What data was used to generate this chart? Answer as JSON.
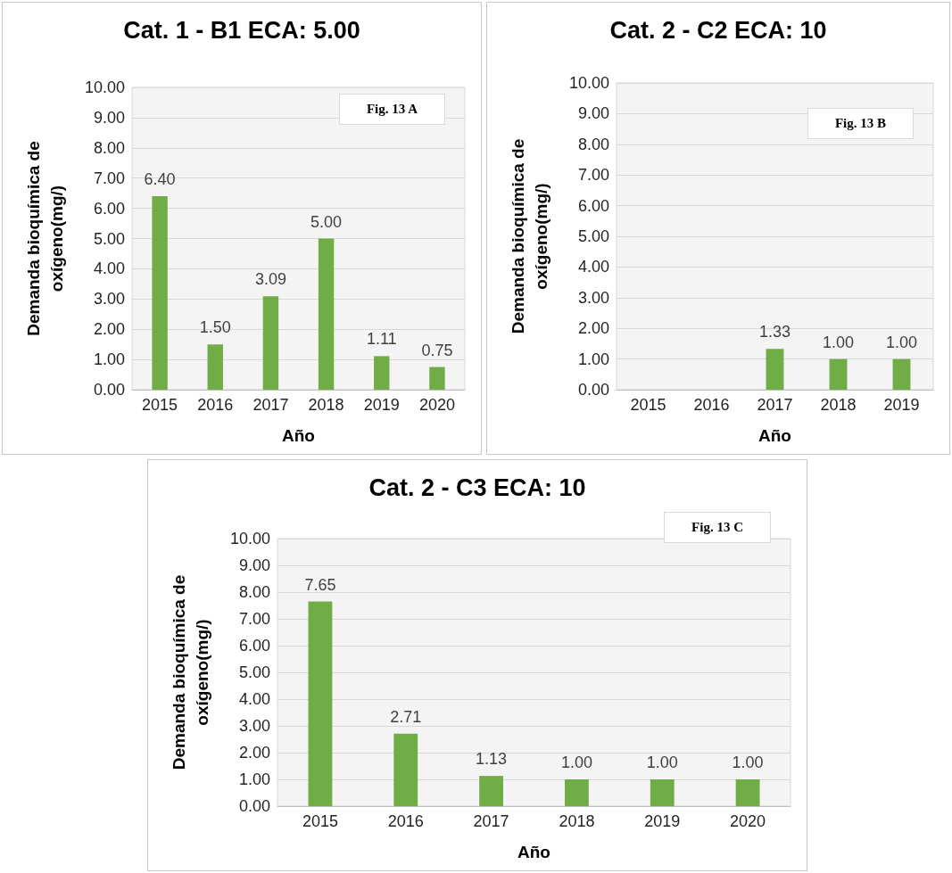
{
  "chart_data": [
    {
      "type": "bar",
      "title": "Cat. 1 - B1 ECA: 5.00",
      "xlabel": "Año",
      "ylabel": "Demanda bioquímica de\noxígeno(mg/)",
      "categories": [
        "2015",
        "2016",
        "2017",
        "2018",
        "2019",
        "2020"
      ],
      "values": [
        6.4,
        1.5,
        3.09,
        5.0,
        1.11,
        0.75
      ],
      "value_labels": [
        "6.40",
        "1.50",
        "3.09",
        "5.00",
        "1.11",
        "0.75"
      ],
      "color": "#70ad47",
      "ylim": [
        0,
        10
      ],
      "yticks": [
        {
          "value": 0,
          "label": "0.00"
        },
        {
          "value": 1,
          "label": "1.00"
        },
        {
          "value": 2,
          "label": "2.00"
        },
        {
          "value": 3,
          "label": "3.00"
        },
        {
          "value": 4,
          "label": "4.00"
        },
        {
          "value": 5,
          "label": "5.00"
        },
        {
          "value": 6,
          "label": "6.00"
        },
        {
          "value": 7,
          "label": "7.00"
        },
        {
          "value": 8,
          "label": "8.00"
        },
        {
          "value": 9,
          "label": "9.00"
        },
        {
          "value": 10,
          "label": "10.00"
        }
      ],
      "grid": true,
      "annotations": [
        "Fig. 13 A"
      ]
    },
    {
      "type": "bar",
      "title": "Cat. 2 - C2 ECA: 10",
      "xlabel": "Año",
      "ylabel": "Demanda bioquímica de\noxígeno(mg/)",
      "categories": [
        "2015",
        "2016",
        "2017",
        "2018",
        "2019"
      ],
      "values": [
        null,
        null,
        1.33,
        1.0,
        1.0
      ],
      "value_labels": [
        null,
        null,
        "1.33",
        "1.00",
        "1.00"
      ],
      "color": "#70ad47",
      "ylim": [
        0,
        10
      ],
      "yticks": [
        {
          "value": 0,
          "label": "0.00"
        },
        {
          "value": 1,
          "label": "1.00"
        },
        {
          "value": 2,
          "label": "2.00"
        },
        {
          "value": 3,
          "label": "3.00"
        },
        {
          "value": 4,
          "label": "4.00"
        },
        {
          "value": 5,
          "label": "5.00"
        },
        {
          "value": 6,
          "label": "6.00"
        },
        {
          "value": 7,
          "label": "7.00"
        },
        {
          "value": 8,
          "label": "8.00"
        },
        {
          "value": 9,
          "label": "9.00"
        },
        {
          "value": 10,
          "label": "10.00"
        }
      ],
      "grid": true,
      "annotations": [
        "Fig. 13 B"
      ]
    },
    {
      "type": "bar",
      "title": "Cat. 2 - C3 ECA: 10",
      "xlabel": "Año",
      "ylabel": "Demanda bioquímica de\noxígeno(mg/)",
      "categories": [
        "2015",
        "2016",
        "2017",
        "2018",
        "2019",
        "2020"
      ],
      "values": [
        7.65,
        2.71,
        1.13,
        1.0,
        1.0,
        1.0
      ],
      "value_labels": [
        "7.65",
        "2.71",
        "1.13",
        "1.00",
        "1.00",
        "1.00"
      ],
      "color": "#70ad47",
      "ylim": [
        0,
        10
      ],
      "yticks": [
        {
          "value": 0,
          "label": "0.00"
        },
        {
          "value": 1,
          "label": "1.00"
        },
        {
          "value": 2,
          "label": "2.00"
        },
        {
          "value": 3,
          "label": "3.00"
        },
        {
          "value": 4,
          "label": "4.00"
        },
        {
          "value": 5,
          "label": "5.00"
        },
        {
          "value": 6,
          "label": "6.00"
        },
        {
          "value": 7,
          "label": "7.00"
        },
        {
          "value": 8,
          "label": "8.00"
        },
        {
          "value": 9,
          "label": "9.00"
        },
        {
          "value": 10,
          "label": "10.00"
        }
      ],
      "grid": true,
      "annotations": [
        "Fig. 13 C"
      ]
    }
  ]
}
